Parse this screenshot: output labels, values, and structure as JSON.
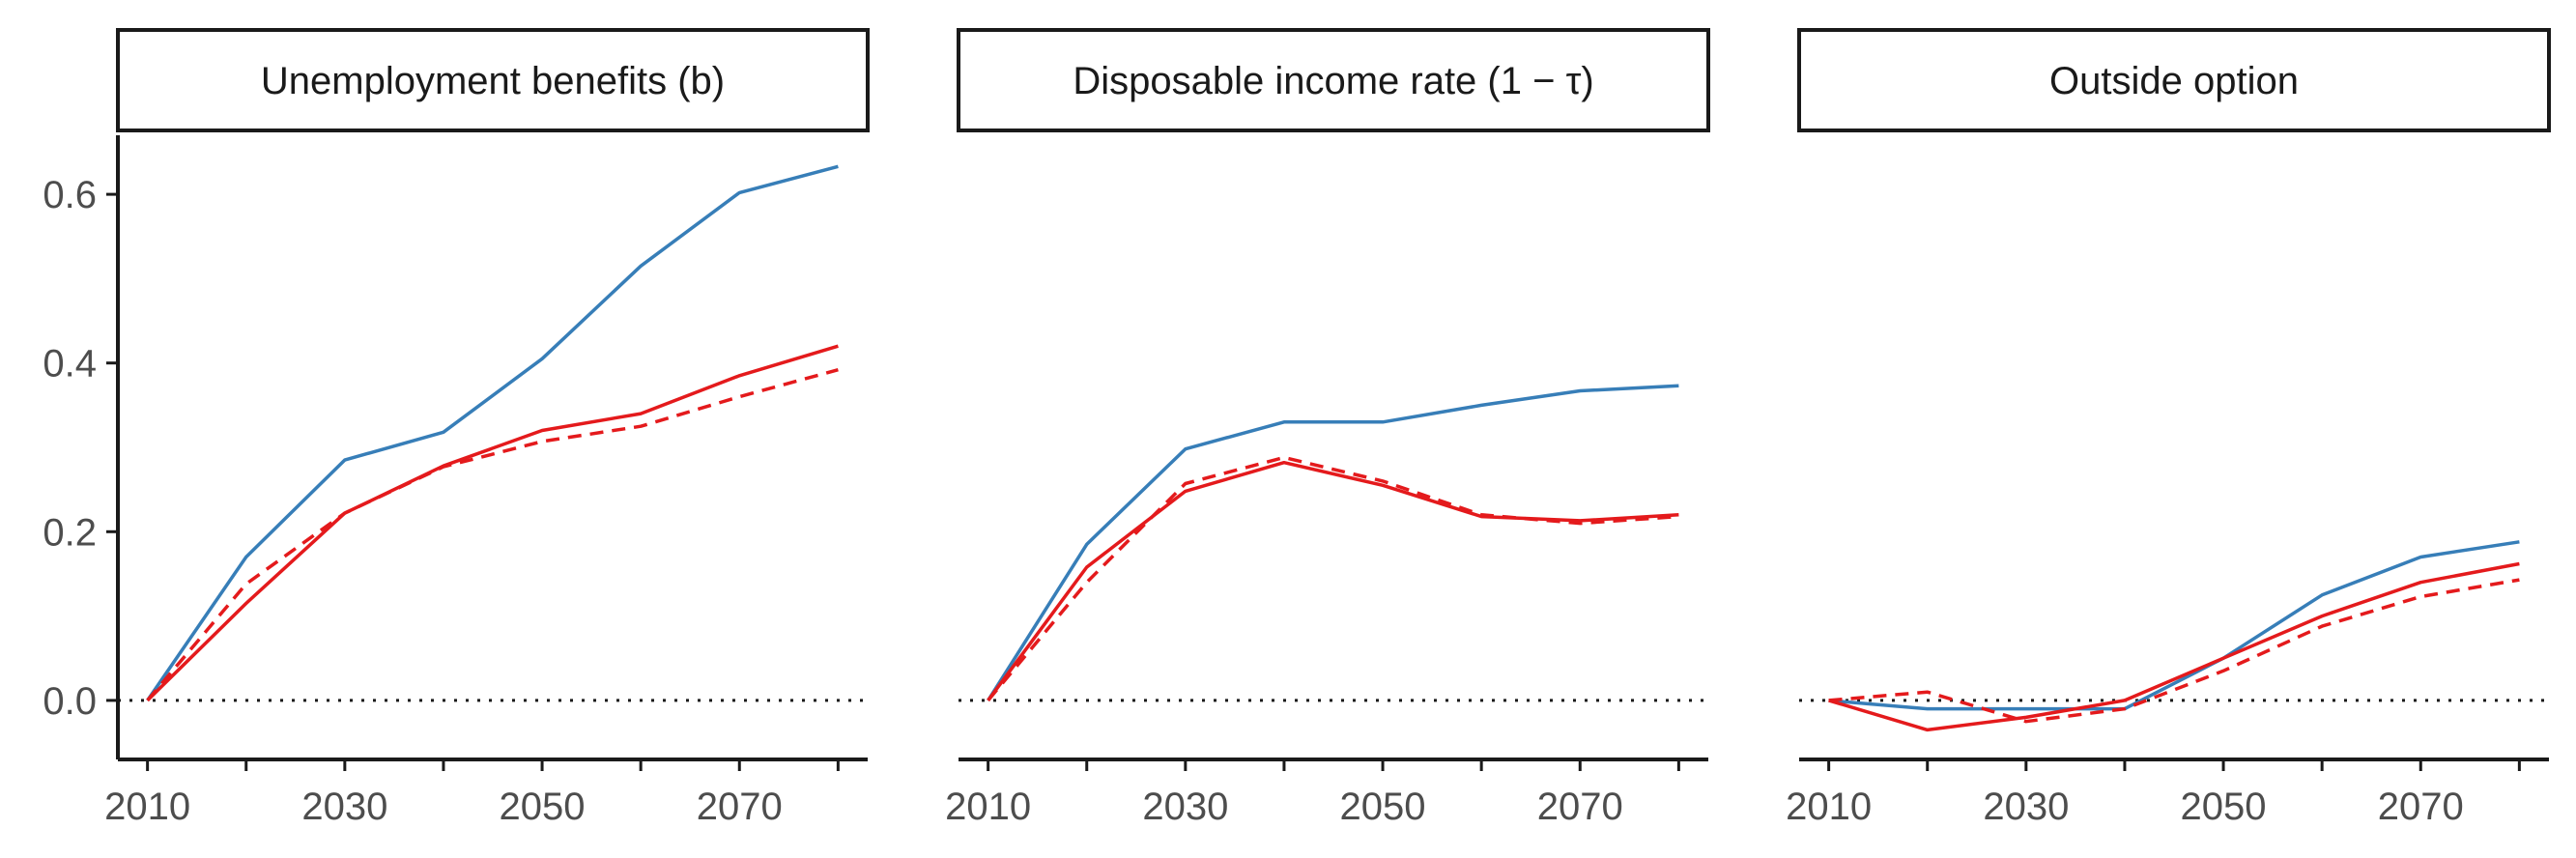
{
  "chart_data": [
    {
      "type": "line",
      "title": "Unemployment benefits (b)",
      "xlabel": "",
      "ylabel": "",
      "x": [
        2010,
        2020,
        2030,
        2040,
        2050,
        2060,
        2070,
        2080
      ],
      "xticks": [
        "2010",
        "2030",
        "2050",
        "2070"
      ],
      "yticks": [
        "0.0",
        "0.2",
        "0.4",
        "0.6"
      ],
      "ylim": [
        -0.07,
        0.67
      ],
      "xlim": [
        2007,
        2083
      ],
      "show_y_axis": true,
      "series": [
        {
          "color": "#377eb8",
          "dash": "solid",
          "values": [
            0.0,
            0.17,
            0.285,
            0.318,
            0.405,
            0.515,
            0.602,
            0.633
          ]
        },
        {
          "color": "#e41a1c",
          "dash": "solid",
          "values": [
            0.0,
            0.115,
            0.222,
            0.278,
            0.32,
            0.34,
            0.385,
            0.42
          ]
        },
        {
          "color": "#e41a1c",
          "dash": "dashed",
          "values": [
            0.0,
            0.138,
            0.222,
            0.277,
            0.307,
            0.325,
            0.36,
            0.392
          ]
        }
      ]
    },
    {
      "type": "line",
      "title": "Disposable income rate (1 − τ)",
      "xlabel": "",
      "ylabel": "",
      "x": [
        2010,
        2020,
        2030,
        2040,
        2050,
        2060,
        2070,
        2080
      ],
      "xticks": [
        "2010",
        "2030",
        "2050",
        "2070"
      ],
      "ylim": [
        -0.07,
        0.67
      ],
      "xlim": [
        2007,
        2083
      ],
      "show_y_axis": false,
      "series": [
        {
          "color": "#377eb8",
          "dash": "solid",
          "values": [
            0.0,
            0.185,
            0.298,
            0.33,
            0.33,
            0.35,
            0.367,
            0.373
          ]
        },
        {
          "color": "#e41a1c",
          "dash": "solid",
          "values": [
            0.0,
            0.158,
            0.248,
            0.282,
            0.255,
            0.218,
            0.213,
            0.22
          ]
        },
        {
          "color": "#e41a1c",
          "dash": "dashed",
          "values": [
            0.0,
            0.14,
            0.257,
            0.288,
            0.26,
            0.22,
            0.21,
            0.218
          ]
        }
      ]
    },
    {
      "type": "line",
      "title": "Outside option",
      "xlabel": "",
      "ylabel": "",
      "x": [
        2010,
        2020,
        2030,
        2040,
        2050,
        2060,
        2070,
        2080
      ],
      "xticks": [
        "2010",
        "2030",
        "2050",
        "2070"
      ],
      "ylim": [
        -0.07,
        0.67
      ],
      "xlim": [
        2007,
        2083
      ],
      "show_y_axis": false,
      "series": [
        {
          "color": "#377eb8",
          "dash": "solid",
          "values": [
            0.0,
            -0.01,
            -0.01,
            -0.01,
            0.05,
            0.125,
            0.17,
            0.188
          ]
        },
        {
          "color": "#e41a1c",
          "dash": "solid",
          "values": [
            0.0,
            -0.035,
            -0.02,
            0.0,
            0.05,
            0.1,
            0.14,
            0.162
          ]
        },
        {
          "color": "#e41a1c",
          "dash": "dashed",
          "values": [
            0.0,
            0.01,
            -0.025,
            -0.01,
            0.035,
            0.088,
            0.123,
            0.143
          ]
        }
      ]
    }
  ]
}
